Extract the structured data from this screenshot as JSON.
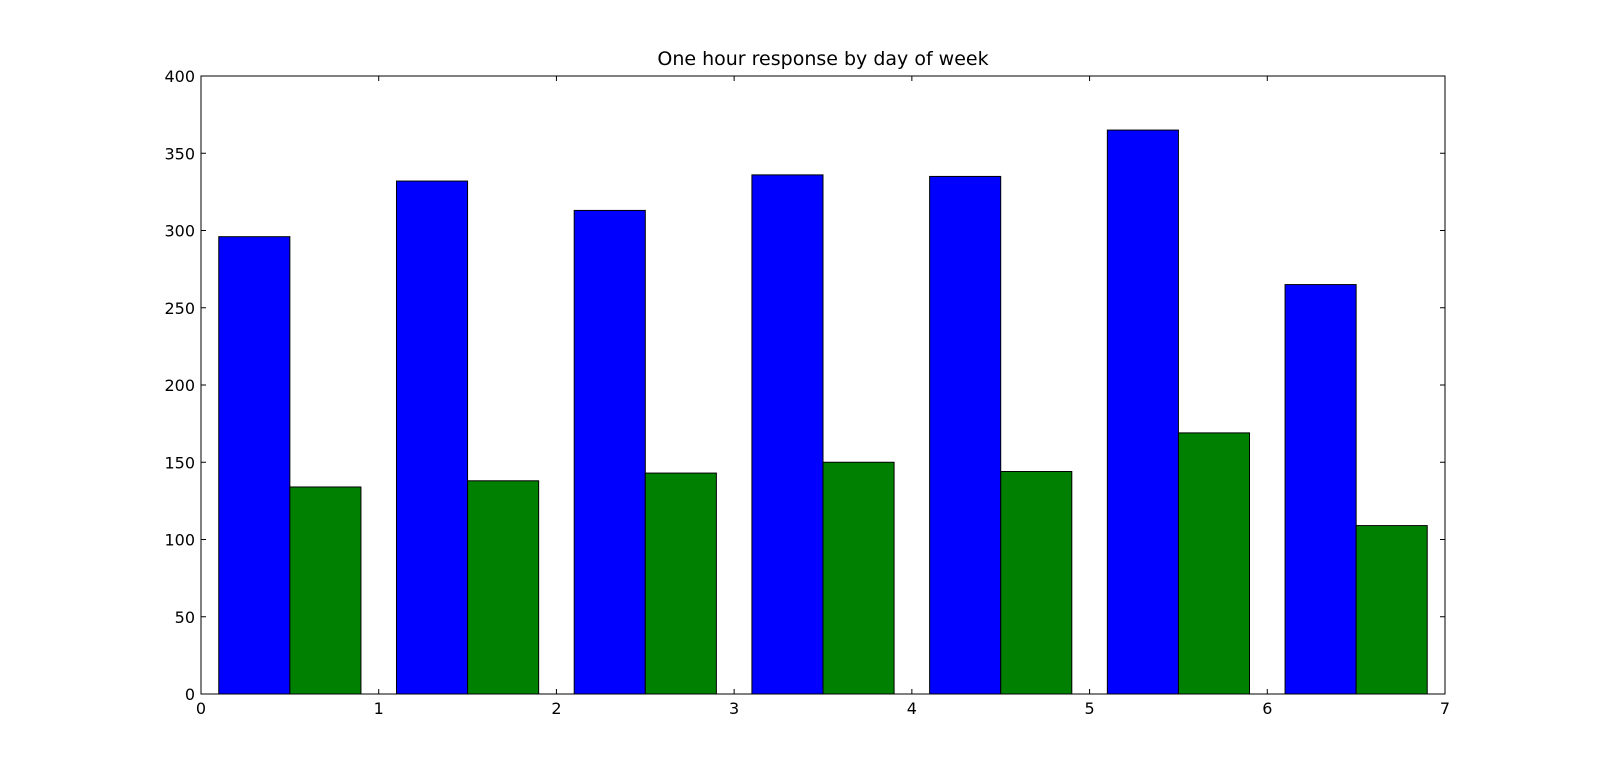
{
  "chart_data": {
    "type": "bar",
    "title": "One hour response by day of week",
    "xlabel": "",
    "ylabel": "",
    "xlim": [
      0,
      7
    ],
    "ylim": [
      0,
      400
    ],
    "x_ticks": [
      "0",
      "1",
      "2",
      "3",
      "4",
      "5",
      "6",
      "7"
    ],
    "y_ticks": [
      "0",
      "50",
      "100",
      "150",
      "200",
      "250",
      "300",
      "350",
      "400"
    ],
    "grid": false,
    "legend": "none",
    "bar_width": 0.4,
    "bar_offset": 0.1,
    "x": [
      0,
      1,
      2,
      3,
      4,
      5,
      6
    ],
    "series": [
      {
        "color": "#0000ff",
        "values": [
          296,
          332,
          313,
          336,
          335,
          365,
          265
        ]
      },
      {
        "color": "#008000",
        "values": [
          134,
          138,
          143,
          150,
          144,
          169,
          109
        ]
      }
    ]
  }
}
